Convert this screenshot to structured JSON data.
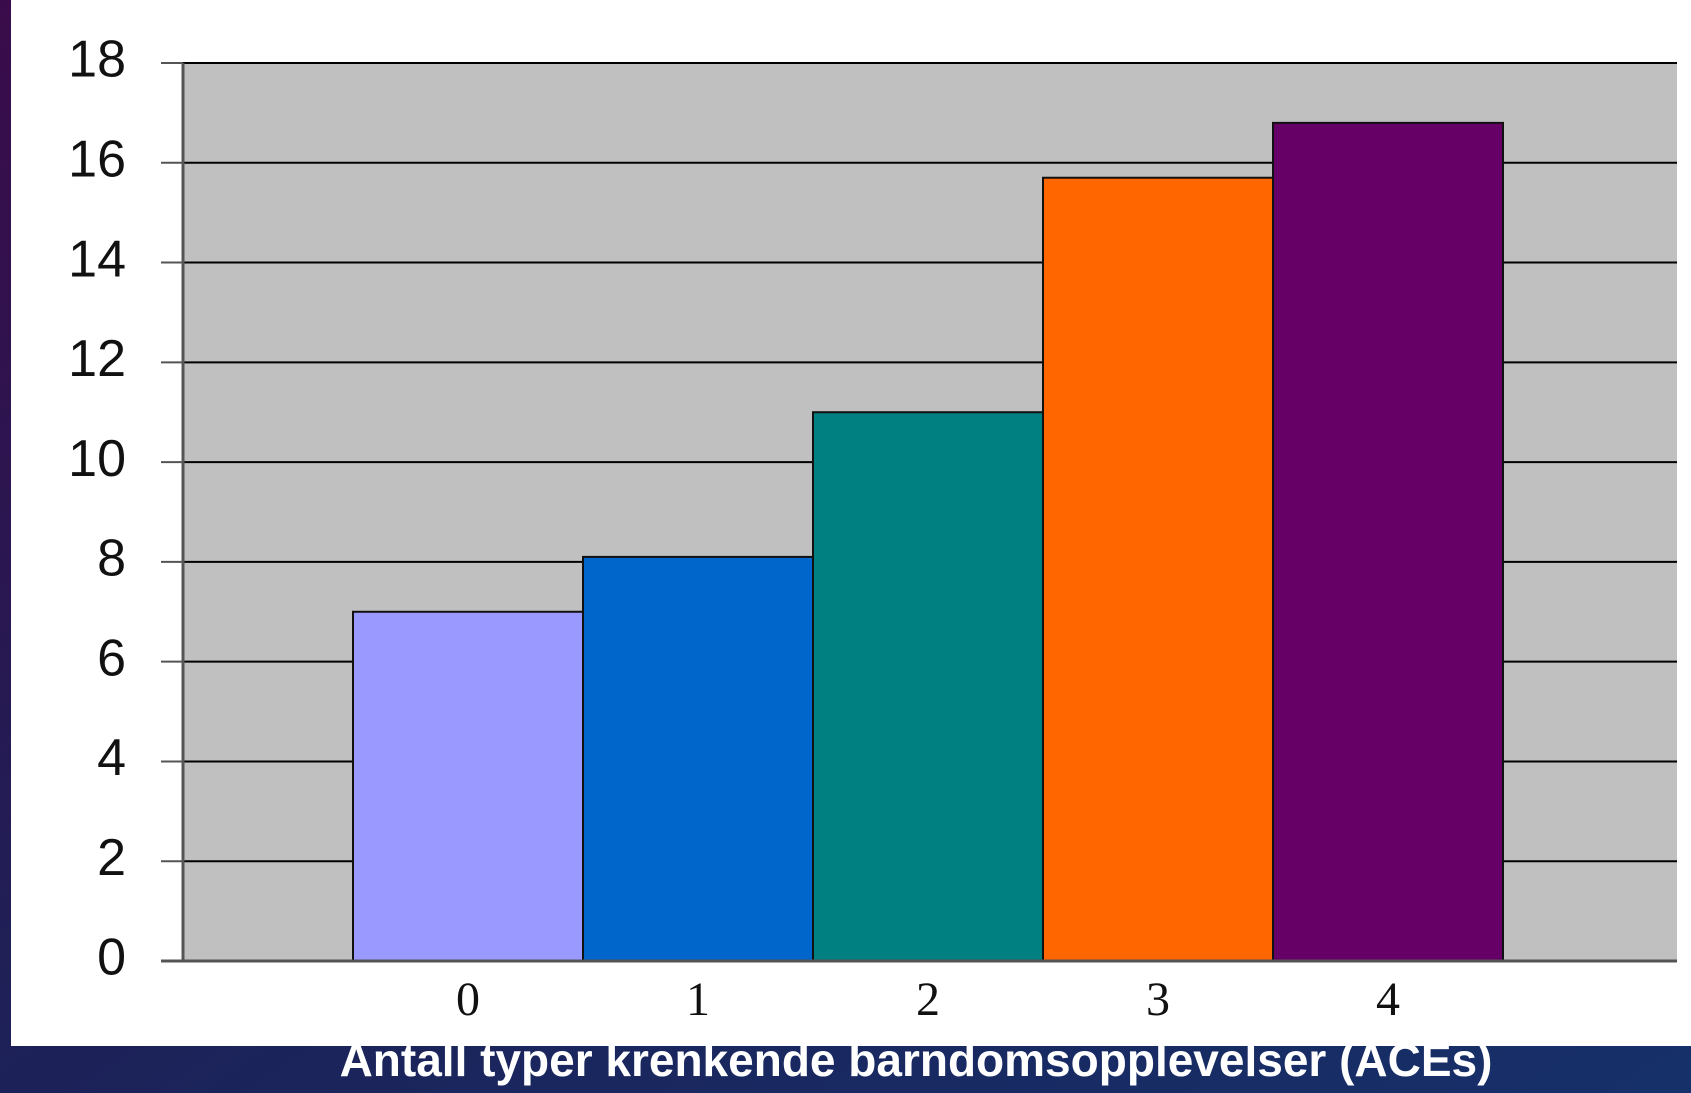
{
  "chart_data": {
    "type": "bar",
    "x_label": "Antall typer krenkende barndomsopplevelser (ACEs)",
    "categories": [
      "0",
      "1",
      "2",
      "3",
      "4"
    ],
    "values": [
      7,
      8.1,
      11,
      15.7,
      16.8
    ],
    "colors": [
      "#9999ff",
      "#0066cc",
      "#008080",
      "#ff6600",
      "#660066"
    ],
    "ylim": [
      0,
      18
    ],
    "yticks": [
      0,
      2,
      4,
      6,
      8,
      10,
      12,
      14,
      16,
      18
    ],
    "grid": true
  }
}
